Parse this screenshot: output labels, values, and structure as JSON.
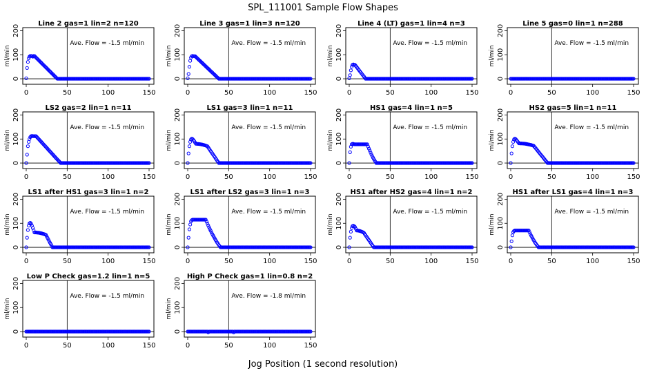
{
  "title": "SPL_111001  Sample Flow Shapes",
  "xlabel": "Jog Position (1 second resolution)",
  "colors": {
    "points": "#0000ff",
    "axes": "#000000",
    "background": "#ffffff"
  },
  "chart_data": [
    {
      "type": "scatter",
      "title": "Line 2 gas=1 lin=2 n=120",
      "annotation": "Ave. Flow = -1.5 ml/min",
      "ylabel": "ml/min",
      "xlim": [
        0,
        150
      ],
      "ylim": [
        -20,
        210
      ],
      "xticks": [
        0,
        50,
        100,
        150
      ],
      "yticks": [
        0,
        100,
        200
      ],
      "vline": 50,
      "hline": 0,
      "shape": {
        "kind": "decay",
        "rise": [
          0,
          1,
          2,
          3,
          4,
          5,
          6,
          7,
          8
        ],
        "riseV": [
          2,
          45,
          70,
          85,
          92,
          95,
          95,
          94,
          92
        ],
        "peak": 95,
        "peakEnd": 10,
        "end": 38
      }
    },
    {
      "type": "scatter",
      "title": "Line 3 gas=1 lin=3 n=120",
      "annotation": "Ave. Flow = -1.5 ml/min",
      "ylabel": "ml/min",
      "xlim": [
        0,
        150
      ],
      "ylim": [
        -20,
        210
      ],
      "xticks": [
        0,
        50,
        100,
        150
      ],
      "yticks": [
        0,
        100,
        200
      ],
      "vline": 50,
      "hline": 0,
      "shape": {
        "kind": "decay",
        "rise": [
          0,
          1,
          2,
          3,
          4,
          5,
          6,
          7
        ],
        "riseV": [
          2,
          20,
          50,
          75,
          88,
          94,
          95,
          94
        ],
        "peak": 94,
        "peakEnd": 9,
        "end": 38
      }
    },
    {
      "type": "scatter",
      "title": "Line 4 (LT) gas=1 lin=4 n=3",
      "annotation": "Ave. Flow = -1.5 ml/min",
      "ylabel": "ml/min",
      "xlim": [
        0,
        150
      ],
      "ylim": [
        -20,
        210
      ],
      "xticks": [
        0,
        50,
        100,
        150
      ],
      "yticks": [
        0,
        100,
        200
      ],
      "vline": 50,
      "hline": 0,
      "shape": {
        "kind": "decay",
        "rise": [
          0,
          1,
          2,
          3,
          4,
          5,
          6
        ],
        "riseV": [
          2,
          15,
          35,
          50,
          58,
          60,
          58
        ],
        "peak": 58,
        "peakEnd": 7,
        "end": 20
      }
    },
    {
      "type": "scatter",
      "title": "Line 5 gas=0 lin=1 n=288",
      "annotation": "Ave. Flow = -1.5 ml/min",
      "ylabel": "ml/min",
      "xlim": [
        0,
        150
      ],
      "ylim": [
        -20,
        210
      ],
      "xticks": [
        0,
        50,
        100,
        150
      ],
      "yticks": [
        0,
        100,
        200
      ],
      "vline": 50,
      "hline": 0,
      "shape": {
        "kind": "flat"
      }
    },
    {
      "type": "scatter",
      "title": "LS2 gas=2 lin=1 n=11",
      "annotation": "Ave. Flow = -1.5 ml/min",
      "ylabel": "ml/min",
      "xlim": [
        0,
        150
      ],
      "ylim": [
        -20,
        210
      ],
      "xticks": [
        0,
        50,
        100,
        150
      ],
      "yticks": [
        0,
        100,
        200
      ],
      "vline": 50,
      "hline": 0,
      "shape": {
        "kind": "decay",
        "rise": [
          0,
          1,
          2,
          3,
          4,
          5,
          6,
          7,
          8
        ],
        "riseV": [
          0,
          35,
          70,
          88,
          100,
          108,
          112,
          113,
          112
        ],
        "peak": 112,
        "peakEnd": 12,
        "end": 42
      }
    },
    {
      "type": "scatter",
      "title": "LS1 gas=3 lin=1 n=11",
      "annotation": "Ave. Flow = -1.5 ml/min",
      "ylabel": "ml/min",
      "xlim": [
        0,
        150
      ],
      "ylim": [
        -20,
        210
      ],
      "xticks": [
        0,
        50,
        100,
        150
      ],
      "yticks": [
        0,
        100,
        200
      ],
      "vline": 50,
      "hline": 0,
      "shape": {
        "kind": "shoulder",
        "rise": [
          0,
          1,
          2,
          3,
          4,
          5,
          6,
          7
        ],
        "riseV": [
          0,
          40,
          70,
          88,
          98,
          102,
          100,
          96
        ],
        "shoulderStart": 10,
        "shoulderV": 80,
        "shoulderEnd": 24,
        "end": 38
      }
    },
    {
      "type": "scatter",
      "title": "HS1 gas=4 lin=1 n=5",
      "annotation": "Ave. Flow = -1.5 ml/min",
      "ylabel": "ml/min",
      "xlim": [
        0,
        150
      ],
      "ylim": [
        -20,
        210
      ],
      "xticks": [
        0,
        50,
        100,
        150
      ],
      "yticks": [
        0,
        100,
        200
      ],
      "vline": 50,
      "hline": 0,
      "shape": {
        "kind": "plateau",
        "rise": [
          0,
          1,
          2,
          3,
          4,
          5
        ],
        "riseV": [
          0,
          45,
          68,
          78,
          80,
          80
        ],
        "plateauV": 78,
        "plateauEnd": 22,
        "end": 33
      }
    },
    {
      "type": "scatter",
      "title": "HS2 gas=5 lin=1 n=11",
      "annotation": "Ave. Flow = -1.5 ml/min",
      "ylabel": "ml/min",
      "xlim": [
        0,
        150
      ],
      "ylim": [
        -20,
        210
      ],
      "xticks": [
        0,
        50,
        100,
        150
      ],
      "yticks": [
        0,
        100,
        200
      ],
      "vline": 50,
      "hline": 0,
      "shape": {
        "kind": "shoulder",
        "rise": [
          0,
          1,
          2,
          3,
          4,
          5,
          6,
          7
        ],
        "riseV": [
          0,
          40,
          70,
          88,
          98,
          102,
          100,
          96
        ],
        "shoulderStart": 10,
        "shoulderV": 82,
        "shoulderEnd": 28,
        "end": 45
      }
    },
    {
      "type": "scatter",
      "title": "LS1 after HS1 gas=3 lin=1 n=2",
      "annotation": "Ave. Flow = -1.5 ml/min",
      "ylabel": "ml/min",
      "xlim": [
        0,
        150
      ],
      "ylim": [
        -20,
        210
      ],
      "xticks": [
        0,
        50,
        100,
        150
      ],
      "yticks": [
        0,
        100,
        200
      ],
      "vline": 50,
      "hline": 0,
      "shape": {
        "kind": "shoulder",
        "rise": [
          0,
          1,
          2,
          3,
          4,
          5,
          6,
          7
        ],
        "riseV": [
          0,
          40,
          72,
          90,
          100,
          102,
          98,
          90
        ],
        "shoulderStart": 10,
        "shoulderV": 62,
        "shoulderEnd": 24,
        "end": 32
      }
    },
    {
      "type": "scatter",
      "title": "LS1 after LS2 gas=3 lin=1 n=3",
      "annotation": "Ave. Flow = -1.5 ml/min",
      "ylabel": "ml/min",
      "xlim": [
        0,
        150
      ],
      "ylim": [
        -20,
        210
      ],
      "xticks": [
        0,
        50,
        100,
        150
      ],
      "yticks": [
        0,
        100,
        200
      ],
      "vline": 50,
      "hline": 0,
      "shape": {
        "kind": "plateau",
        "rise": [
          0,
          1,
          2,
          3,
          4,
          5,
          6
        ],
        "riseV": [
          0,
          40,
          75,
          95,
          108,
          113,
          115
        ],
        "plateauV": 115,
        "plateauEnd": 22,
        "end": 40
      }
    },
    {
      "type": "scatter",
      "title": "HS1 after HS2 gas=4 lin=1 n=2",
      "annotation": "Ave. Flow = -1.5 ml/min",
      "ylabel": "ml/min",
      "xlim": [
        0,
        150
      ],
      "ylim": [
        -20,
        210
      ],
      "xticks": [
        0,
        50,
        100,
        150
      ],
      "yticks": [
        0,
        100,
        200
      ],
      "vline": 50,
      "hline": 0,
      "shape": {
        "kind": "shoulder",
        "rise": [
          0,
          1,
          2,
          3,
          4,
          5,
          6,
          7
        ],
        "riseV": [
          0,
          40,
          65,
          80,
          88,
          90,
          88,
          85
        ],
        "shoulderStart": 9,
        "shoulderV": 70,
        "shoulderEnd": 18,
        "end": 30
      }
    },
    {
      "type": "scatter",
      "title": "HS1 after LS1 gas=4 lin=1 n=3",
      "annotation": "Ave. Flow = -1.5 ml/min",
      "ylabel": "ml/min",
      "xlim": [
        0,
        150
      ],
      "ylim": [
        -20,
        210
      ],
      "xticks": [
        0,
        50,
        100,
        150
      ],
      "yticks": [
        0,
        100,
        200
      ],
      "vline": 50,
      "hline": 0,
      "shape": {
        "kind": "plateau",
        "rise": [
          0,
          1,
          2,
          3,
          4,
          5,
          6
        ],
        "riseV": [
          0,
          25,
          50,
          63,
          68,
          70,
          70
        ],
        "plateauV": 70,
        "plateauEnd": 22,
        "end": 34
      }
    },
    {
      "type": "scatter",
      "title": "Low P Check gas=1.2 lin=1 n=5",
      "annotation": "Ave. Flow = -1.5 ml/min",
      "ylabel": "ml/min",
      "xlim": [
        0,
        150
      ],
      "ylim": [
        -20,
        210
      ],
      "xticks": [
        0,
        50,
        100,
        150
      ],
      "yticks": [
        0,
        100,
        200
      ],
      "vline": 50,
      "hline": 0,
      "shape": {
        "kind": "flat"
      }
    },
    {
      "type": "scatter",
      "title": "High P Check gas=1 lin=0.8 n=2",
      "annotation": "Ave. Flow = -1.8 ml/min",
      "ylabel": "ml/min",
      "xlim": [
        0,
        150
      ],
      "ylim": [
        -20,
        210
      ],
      "xticks": [
        0,
        50,
        100,
        150
      ],
      "yticks": [
        0,
        100,
        200
      ],
      "vline": 50,
      "hline": 0,
      "shape": {
        "kind": "flat",
        "dip": [
          25,
          56
        ],
        "dipV": -3
      }
    }
  ]
}
